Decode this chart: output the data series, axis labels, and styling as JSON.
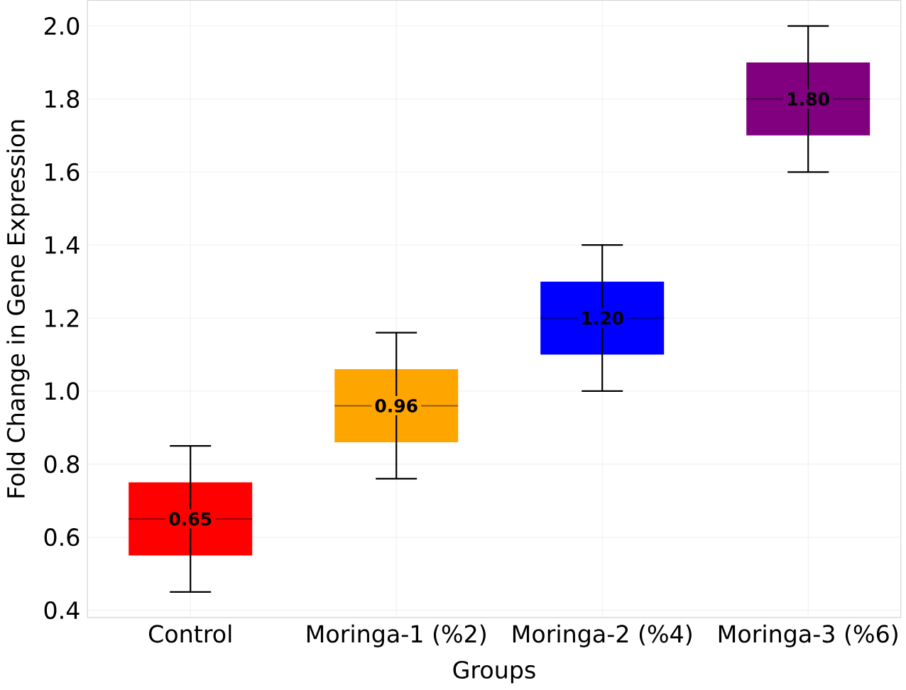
{
  "chart_data": {
    "type": "box",
    "xlabel": "Groups",
    "ylabel": "Fold Change in Gene Expression",
    "categories": [
      "Control",
      "Moringa-1 (%2)",
      "Moringa-2 (%4)",
      "Moringa-3 (%6)"
    ],
    "colors": [
      "#ff0000",
      "#ffa500",
      "#0000ff",
      "#800080"
    ],
    "boxes": [
      {
        "low": 0.45,
        "q1": 0.55,
        "median": 0.65,
        "q3": 0.75,
        "high": 0.85
      },
      {
        "low": 0.76,
        "q1": 0.86,
        "median": 0.96,
        "q3": 1.06,
        "high": 1.16
      },
      {
        "low": 1.0,
        "q1": 1.1,
        "median": 1.2,
        "q3": 1.3,
        "high": 1.4
      },
      {
        "low": 1.6,
        "q1": 1.7,
        "median": 1.8,
        "q3": 1.9,
        "high": 2.0
      }
    ],
    "annotations": [
      {
        "text": "0.65",
        "x": "Control",
        "y": 0.65
      },
      {
        "text": "0.96",
        "x": "Moringa-1 (%2)",
        "y": 0.96
      },
      {
        "text": "1.20",
        "x": "Moringa-2 (%4)",
        "y": 1.2
      },
      {
        "text": "1.80",
        "x": "Moringa-3 (%6)",
        "y": 1.8
      }
    ],
    "ylim": [
      0.38,
      2.07
    ],
    "yticks": [
      0.4,
      0.6,
      0.8,
      {
        "value": 1.0,
        "label": "1.0"
      },
      1.2,
      1.4,
      1.6,
      1.8,
      {
        "value": 2.0,
        "label": "2.0"
      }
    ],
    "grid": true
  }
}
